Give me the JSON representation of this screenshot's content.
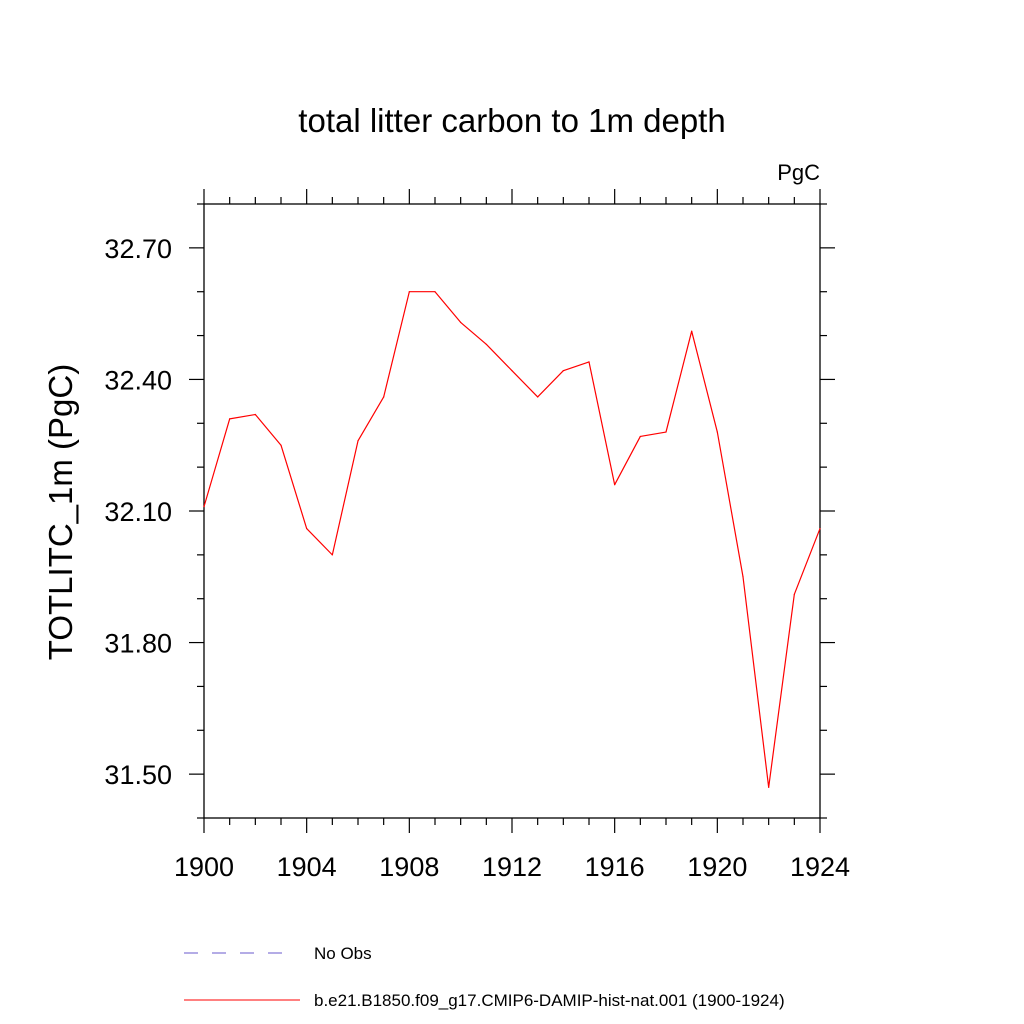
{
  "chart_data": {
    "type": "line",
    "title": "total litter carbon to 1m depth",
    "units_label": "PgC",
    "ylabel": "TOTLITC_1m  (PgC)",
    "xlabel": "",
    "xlim": [
      1900,
      1924
    ],
    "ylim": [
      31.4,
      32.8
    ],
    "x_ticks": [
      1900,
      1904,
      1908,
      1912,
      1916,
      1920,
      1924
    ],
    "x_tick_labels": [
      "1900",
      "1904",
      "1908",
      "1912",
      "1916",
      "1920",
      "1924"
    ],
    "x_minor_ticks": [
      1901,
      1902,
      1903,
      1905,
      1906,
      1907,
      1909,
      1910,
      1911,
      1913,
      1914,
      1915,
      1917,
      1918,
      1919,
      1921,
      1922,
      1923
    ],
    "y_ticks": [
      31.5,
      31.8,
      32.1,
      32.4,
      32.7
    ],
    "y_tick_labels": [
      "31.50",
      "31.80",
      "32.10",
      "32.40",
      "32.70"
    ],
    "y_minor_ticks": [
      31.4,
      31.6,
      31.7,
      31.9,
      32.0,
      32.2,
      32.3,
      32.5,
      32.6,
      32.8
    ],
    "grid": false,
    "legend_placement": "bottom",
    "series": [
      {
        "name": "b.e21.B1850.f09_g17.CMIP6-DAMIP-hist-nat.001 (1900-1924)",
        "color": "#ff0000",
        "dash": "solid",
        "x": [
          1900,
          1901,
          1902,
          1903,
          1904,
          1905,
          1906,
          1907,
          1908,
          1909,
          1910,
          1911,
          1912,
          1913,
          1914,
          1915,
          1916,
          1917,
          1918,
          1919,
          1920,
          1921,
          1922,
          1923,
          1924
        ],
        "y": [
          32.11,
          32.31,
          32.32,
          32.25,
          32.06,
          32.0,
          32.26,
          32.36,
          32.6,
          32.6,
          32.53,
          32.48,
          32.42,
          32.36,
          32.42,
          32.44,
          32.16,
          32.27,
          32.28,
          32.51,
          32.28,
          31.95,
          31.47,
          31.91,
          32.06
        ]
      }
    ],
    "legend": [
      {
        "label": "No Obs",
        "color": "#6a5acd",
        "dash": "dashed"
      },
      {
        "label": "b.e21.B1850.f09_g17.CMIP6-DAMIP-hist-nat.001 (1900-1924)",
        "color": "#ff0000",
        "dash": "solid"
      }
    ]
  }
}
